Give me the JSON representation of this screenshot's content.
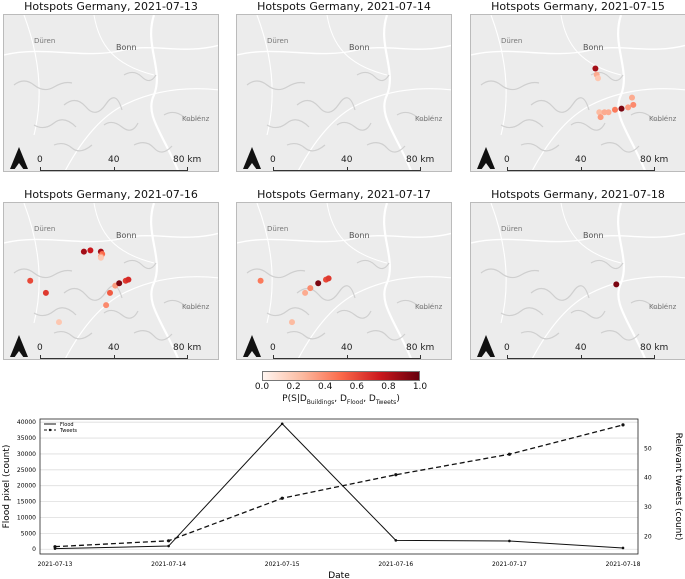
{
  "panels": [
    {
      "title": "Hotspots Germany, 2021-07-13",
      "hotspots": []
    },
    {
      "title": "Hotspots Germany, 2021-07-14",
      "hotspots": []
    },
    {
      "title": "Hotspots Germany, 2021-07-15",
      "hotspots": [
        {
          "lon": 7.05,
          "lat": 50.68,
          "p": 0.85
        },
        {
          "lon": 7.06,
          "lat": 50.655,
          "p": 0.3
        },
        {
          "lon": 7.07,
          "lat": 50.64,
          "p": 0.2
        },
        {
          "lon": 7.08,
          "lat": 50.5,
          "p": 0.25
        },
        {
          "lon": 7.09,
          "lat": 50.48,
          "p": 0.35
        },
        {
          "lon": 7.12,
          "lat": 50.5,
          "p": 0.3
        },
        {
          "lon": 7.2,
          "lat": 50.51,
          "p": 0.45
        },
        {
          "lon": 7.25,
          "lat": 50.515,
          "p": 0.95
        },
        {
          "lon": 7.3,
          "lat": 50.52,
          "p": 0.35
        },
        {
          "lon": 7.33,
          "lat": 50.56,
          "p": 0.3
        },
        {
          "lon": 7.34,
          "lat": 50.53,
          "p": 0.4
        },
        {
          "lon": 7.15,
          "lat": 50.5,
          "p": 0.3
        }
      ]
    },
    {
      "title": "Hotspots Germany, 2021-07-16",
      "hotspots": [
        {
          "lon": 6.71,
          "lat": 50.7,
          "p": 0.85
        },
        {
          "lon": 6.76,
          "lat": 50.705,
          "p": 0.75
        },
        {
          "lon": 6.84,
          "lat": 50.7,
          "p": 0.85
        },
        {
          "lon": 6.85,
          "lat": 50.69,
          "p": 0.5
        },
        {
          "lon": 6.84,
          "lat": 50.68,
          "p": 0.35
        },
        {
          "lon": 6.84,
          "lat": 50.675,
          "p": 0.2
        },
        {
          "lon": 6.3,
          "lat": 50.58,
          "p": 0.6
        },
        {
          "lon": 6.42,
          "lat": 50.53,
          "p": 0.65
        },
        {
          "lon": 6.52,
          "lat": 50.41,
          "p": 0.2
        },
        {
          "lon": 6.88,
          "lat": 50.48,
          "p": 0.4
        },
        {
          "lon": 6.91,
          "lat": 50.53,
          "p": 0.55
        },
        {
          "lon": 6.95,
          "lat": 50.56,
          "p": 0.35
        },
        {
          "lon": 6.98,
          "lat": 50.57,
          "p": 0.95
        },
        {
          "lon": 7.03,
          "lat": 50.58,
          "p": 0.65
        },
        {
          "lon": 7.05,
          "lat": 50.585,
          "p": 0.7
        }
      ]
    },
    {
      "title": "Hotspots Germany, 2021-07-17",
      "hotspots": [
        {
          "lon": 6.28,
          "lat": 50.58,
          "p": 0.45
        },
        {
          "lon": 6.52,
          "lat": 50.41,
          "p": 0.25
        },
        {
          "lon": 6.62,
          "lat": 50.53,
          "p": 0.3
        },
        {
          "lon": 6.66,
          "lat": 50.55,
          "p": 0.4
        },
        {
          "lon": 6.72,
          "lat": 50.57,
          "p": 0.95
        },
        {
          "lon": 6.78,
          "lat": 50.585,
          "p": 0.6
        },
        {
          "lon": 6.8,
          "lat": 50.59,
          "p": 0.65
        }
      ]
    },
    {
      "title": "Hotspots Germany, 2021-07-18",
      "hotspots": [
        {
          "lon": 7.21,
          "lat": 50.565,
          "p": 0.95
        }
      ]
    }
  ],
  "cities": {
    "duren": "Düren",
    "bonn": "Bonn",
    "koblenz": "Koblenz"
  },
  "scalebar": {
    "l0": "0",
    "l40": "40",
    "l80": "80 km"
  },
  "colorbar": {
    "ticks": [
      "0.0",
      "0.2",
      "0.4",
      "0.6",
      "0.8",
      "1.0"
    ],
    "label": "P(S|D_Buildings, D_Flood, D_Tweets)",
    "label_parts": {
      "base": "P(S|D",
      "b": "Buildings",
      "c1": ", D",
      "f": "Flood",
      "c2": ", D",
      "t": "Tweets",
      "end": ")"
    },
    "colors": [
      "#fff5f0",
      "#fcbba1",
      "#fb6a4a",
      "#cb181d",
      "#67000d"
    ]
  },
  "chart_data": {
    "type": "line",
    "categories": [
      "2021-07-13",
      "2021-07-14",
      "2021-07-15",
      "2021-07-16",
      "2021-07-17",
      "2021-07-18"
    ],
    "series": [
      {
        "name": "Flood",
        "axis": "left",
        "values": [
          200,
          1000,
          39500,
          2800,
          2600,
          400
        ]
      },
      {
        "name": "Tweets",
        "axis": "right",
        "values": [
          16.5,
          18.5,
          33,
          41,
          48,
          58
        ]
      }
    ],
    "xlabel": "Date",
    "ylabel": "Flood pixel (count)",
    "y2label": "Relevant tweets (count)",
    "ylim": [
      -1500,
      41000
    ],
    "yticks": [
      "0",
      "5000",
      "10000",
      "15000",
      "20000",
      "25000",
      "30000",
      "35000",
      "40000"
    ],
    "y2lim": [
      14,
      60
    ],
    "y2ticks": [
      "20",
      "30",
      "40",
      "50"
    ],
    "legend": "top-left",
    "grid": true
  }
}
